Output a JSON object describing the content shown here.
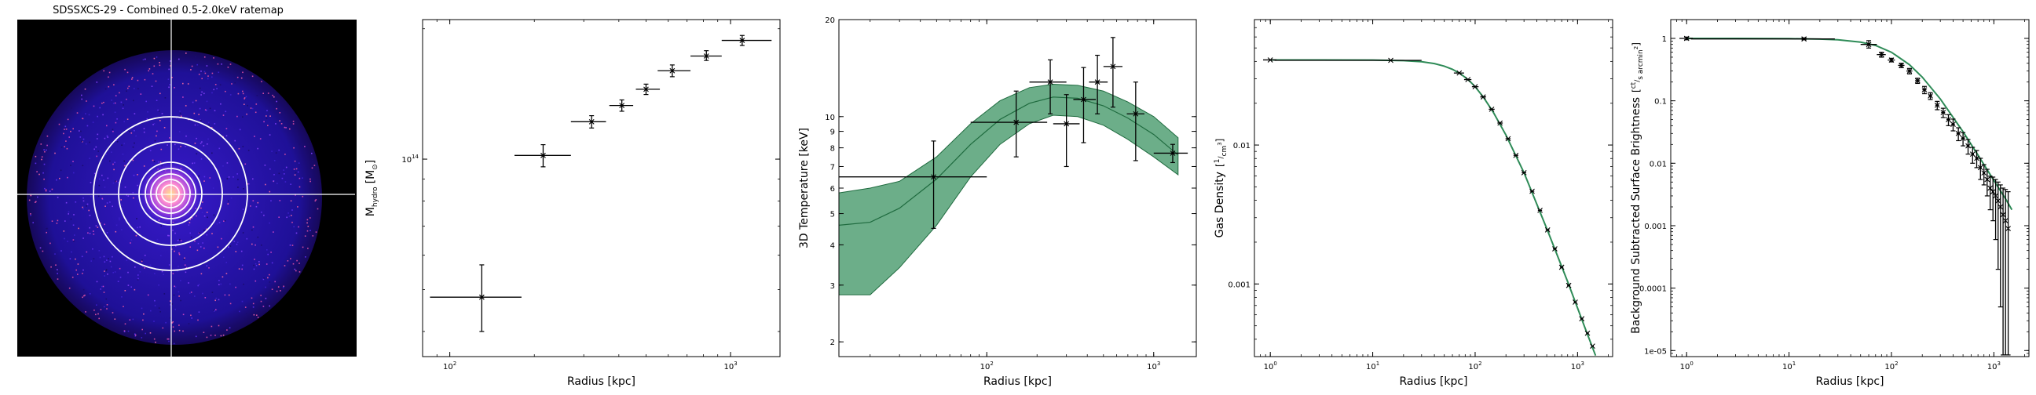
{
  "chart_data": [
    {
      "type": "image",
      "title": "SDSSXCS-29 - Combined 0.5-2.0keV ratemap",
      "colors": {
        "background": "#000000",
        "emission": "#3b1bd6",
        "core": "#ffd36b",
        "contours": "#ffffff"
      }
    },
    {
      "type": "scatter",
      "xscale": "log",
      "yscale": "log",
      "xlabel": "Radius [kpc]",
      "ylabel": "M",
      "ylabel_sub": "hydro",
      "ylabel_unit": "[M",
      "ylabel_unit_sub": "⊙",
      "xlim": [
        80,
        1500
      ],
      "ylim": [
        35000000000000,
        210000000000000
      ],
      "xticks": [
        {
          "v": 100,
          "base": "10",
          "exp": "2"
        },
        {
          "v": 1000,
          "base": "10",
          "exp": "3"
        }
      ],
      "yticks": [
        {
          "v": 100000000000000,
          "base": "10",
          "exp": "14"
        }
      ],
      "points": [
        {
          "x": 130,
          "y": 48000000000000,
          "xlo": 85,
          "xhi": 180,
          "ylo": 40000000000000,
          "yhi": 57000000000000
        },
        {
          "x": 215,
          "y": 102000000000000,
          "xlo": 170,
          "xhi": 270,
          "ylo": 96000000000000,
          "yhi": 108000000000000
        },
        {
          "x": 320,
          "y": 122000000000000,
          "xlo": 270,
          "xhi": 360,
          "ylo": 118000000000000,
          "yhi": 126000000000000
        },
        {
          "x": 410,
          "y": 133000000000000,
          "xlo": 370,
          "xhi": 450,
          "ylo": 129000000000000,
          "yhi": 137000000000000
        },
        {
          "x": 500,
          "y": 145000000000000,
          "xlo": 460,
          "xhi": 560,
          "ylo": 141000000000000,
          "yhi": 149000000000000
        },
        {
          "x": 620,
          "y": 160000000000000,
          "xlo": 550,
          "xhi": 720,
          "ylo": 155000000000000,
          "yhi": 165000000000000
        },
        {
          "x": 820,
          "y": 173000000000000,
          "xlo": 720,
          "xhi": 930,
          "ylo": 169000000000000,
          "yhi": 178000000000000
        },
        {
          "x": 1100,
          "y": 188000000000000,
          "xlo": 930,
          "xhi": 1400,
          "ylo": 183000000000000,
          "yhi": 193000000000000
        }
      ]
    },
    {
      "type": "scatter",
      "xscale": "log",
      "yscale": "log",
      "xlabel": "Radius [kpc]",
      "ylabel": "3D Temperature [keV]",
      "xlim": [
        13,
        1800
      ],
      "ylim": [
        1.8,
        20
      ],
      "xticks": [
        {
          "v": 100,
          "base": "10",
          "exp": "2"
        },
        {
          "v": 1000,
          "base": "10",
          "exp": "3"
        }
      ],
      "yticks": [
        {
          "v": 2,
          "label": "2"
        },
        {
          "v": 3,
          "label": "3"
        },
        {
          "v": 4,
          "label": "4"
        },
        {
          "v": 5,
          "label": "5"
        },
        {
          "v": 6,
          "label": "6"
        },
        {
          "v": 7,
          "label": "7"
        },
        {
          "v": 8,
          "label": "8"
        },
        {
          "v": 9,
          "label": "9"
        },
        {
          "v": 10,
          "label": "10"
        },
        {
          "v": 20,
          "label": "20"
        }
      ],
      "band_color": "#2e8b57",
      "model": {
        "r": [
          13,
          20,
          30,
          50,
          80,
          120,
          180,
          250,
          350,
          500,
          700,
          1000,
          1400
        ],
        "mid": [
          4.6,
          4.7,
          5.2,
          6.4,
          8.2,
          9.8,
          11.0,
          11.5,
          11.4,
          10.8,
          9.9,
          8.8,
          7.6
        ],
        "lo": [
          2.8,
          2.8,
          3.4,
          4.6,
          6.5,
          8.2,
          9.5,
          10.1,
          10.0,
          9.4,
          8.5,
          7.5,
          6.6
        ],
        "hi": [
          5.8,
          6.0,
          6.3,
          7.5,
          9.5,
          11.2,
          12.3,
          12.6,
          12.5,
          12.0,
          11.1,
          10.0,
          8.6
        ]
      },
      "points": [
        {
          "x": 48,
          "y": 6.5,
          "xlo": 13,
          "xhi": 100,
          "ylo": 4.5,
          "yhi": 8.4
        },
        {
          "x": 150,
          "y": 9.6,
          "xlo": 80,
          "xhi": 230,
          "ylo": 7.5,
          "yhi": 12.0
        },
        {
          "x": 240,
          "y": 12.8,
          "xlo": 180,
          "xhi": 300,
          "ylo": 10.2,
          "yhi": 15.0
        },
        {
          "x": 300,
          "y": 9.5,
          "xlo": 250,
          "xhi": 360,
          "ylo": 7.0,
          "yhi": 11.7
        },
        {
          "x": 380,
          "y": 11.3,
          "xlo": 330,
          "xhi": 450,
          "ylo": 8.3,
          "yhi": 14.2
        },
        {
          "x": 460,
          "y": 12.8,
          "xlo": 410,
          "xhi": 530,
          "ylo": 10.2,
          "yhi": 15.5
        },
        {
          "x": 570,
          "y": 14.3,
          "xlo": 500,
          "xhi": 650,
          "ylo": 10.7,
          "yhi": 17.6
        },
        {
          "x": 780,
          "y": 10.2,
          "xlo": 690,
          "xhi": 880,
          "ylo": 7.3,
          "yhi": 12.8
        },
        {
          "x": 1300,
          "y": 7.7,
          "xlo": 1000,
          "xhi": 1600,
          "ylo": 7.2,
          "yhi": 8.2
        }
      ]
    },
    {
      "type": "line",
      "xscale": "log",
      "yscale": "log",
      "xlabel": "Radius [kpc]",
      "ylabel": "Gas Density",
      "ylabel_unit_num": "1",
      "ylabel_unit_den": "cm",
      "ylabel_unit_den_exp": "3",
      "xlim": [
        0.7,
        2200
      ],
      "ylim": [
        0.0003,
        0.08
      ],
      "xticks": [
        {
          "v": 1,
          "base": "10",
          "exp": "0"
        },
        {
          "v": 10,
          "base": "10",
          "exp": "1"
        },
        {
          "v": 100,
          "base": "10",
          "exp": "2"
        },
        {
          "v": 1000,
          "base": "10",
          "exp": "3"
        }
      ],
      "yticks": [
        {
          "v": 0.01,
          "label": "0.01"
        },
        {
          "v": 0.001,
          "label": "0.001"
        }
      ],
      "model_color": "#2e8b57",
      "model": {
        "r": [
          1,
          3,
          10,
          20,
          30,
          40,
          50,
          60,
          70,
          80,
          90,
          100,
          120,
          150,
          200,
          300,
          500,
          800,
          1200,
          1500
        ],
        "val": [
          0.041,
          0.041,
          0.0409,
          0.0405,
          0.0398,
          0.0386,
          0.037,
          0.0351,
          0.033,
          0.0307,
          0.0285,
          0.0263,
          0.0222,
          0.0173,
          0.0118,
          0.00632,
          0.00251,
          0.00104,
          0.000469,
          0.000305
        ]
      },
      "points": [
        {
          "x": 1,
          "y": 0.041,
          "xlo": 0.85,
          "xhi": 1.15
        },
        {
          "x": 15,
          "y": 0.0407,
          "xlo": 1.1,
          "xhi": 30
        },
        {
          "x": 70,
          "y": 0.033,
          "xlo": 62,
          "xhi": 78
        },
        {
          "x": 85,
          "y": 0.0296,
          "xlo": 78,
          "xhi": 92
        },
        {
          "x": 100,
          "y": 0.0263,
          "xlo": 93,
          "xhi": 108
        },
        {
          "x": 120,
          "y": 0.0222,
          "xlo": 112,
          "xhi": 128
        },
        {
          "x": 145,
          "y": 0.0181,
          "xlo": 136,
          "xhi": 155
        },
        {
          "x": 175,
          "y": 0.0144,
          "xlo": 165,
          "xhi": 186
        },
        {
          "x": 210,
          "y": 0.0111,
          "xlo": 198,
          "xhi": 222
        },
        {
          "x": 250,
          "y": 0.00843,
          "xlo": 237,
          "xhi": 264
        },
        {
          "x": 300,
          "y": 0.00632,
          "xlo": 285,
          "xhi": 315
        },
        {
          "x": 360,
          "y": 0.00465,
          "xlo": 343,
          "xhi": 378
        },
        {
          "x": 430,
          "y": 0.00339,
          "xlo": 410,
          "xhi": 450
        },
        {
          "x": 510,
          "y": 0.00245,
          "xlo": 488,
          "xhi": 532
        },
        {
          "x": 600,
          "y": 0.00179,
          "xlo": 575,
          "xhi": 625
        },
        {
          "x": 700,
          "y": 0.00132,
          "xlo": 673,
          "xhi": 728
        },
        {
          "x": 820,
          "y": 0.000976,
          "xlo": 790,
          "xhi": 850
        },
        {
          "x": 950,
          "y": 0.00074,
          "xlo": 917,
          "xhi": 983
        },
        {
          "x": 1100,
          "y": 0.000562,
          "xlo": 1065,
          "xhi": 1135
        },
        {
          "x": 1250,
          "y": 0.000442,
          "xlo": 1210,
          "xhi": 1290
        },
        {
          "x": 1400,
          "y": 0.000357,
          "xlo": 1360,
          "xhi": 1440
        }
      ]
    },
    {
      "type": "scatter",
      "xscale": "log",
      "yscale": "log",
      "xlabel": "Radius [kpc]",
      "ylabel": "Background Subtracted Surface Brightness",
      "ylabel_unit_num": "ct",
      "ylabel_unit_den": "s arcmin",
      "ylabel_unit_den_exp": "2",
      "xlim": [
        0.7,
        2200
      ],
      "ylim": [
        8e-06,
        2
      ],
      "xticks": [
        {
          "v": 1,
          "base": "10",
          "exp": "0"
        },
        {
          "v": 10,
          "base": "10",
          "exp": "1"
        },
        {
          "v": 100,
          "base": "10",
          "exp": "2"
        },
        {
          "v": 1000,
          "base": "10",
          "exp": "3"
        }
      ],
      "yticks": [
        {
          "v": 1,
          "label": "1"
        },
        {
          "v": 0.1,
          "label": "0.1"
        },
        {
          "v": 0.01,
          "label": "0.01"
        },
        {
          "v": 0.001,
          "label": "0.001"
        },
        {
          "v": 0.0001,
          "label": "0.0001"
        },
        {
          "v": 1e-05,
          "label": "1e-05"
        }
      ],
      "model_color": "#2e8b57",
      "model": {
        "r": [
          1,
          3,
          10,
          20,
          30,
          50,
          70,
          100,
          150,
          200,
          300,
          500,
          700,
          1000,
          1300,
          1500
        ],
        "val": [
          1.0,
          1.0,
          0.99,
          0.975,
          0.95,
          0.87,
          0.77,
          0.6,
          0.38,
          0.24,
          0.107,
          0.032,
          0.0135,
          0.0053,
          0.0027,
          0.0018
        ]
      },
      "points": [
        {
          "x": 1,
          "y": 1.0,
          "xlo": 0.85,
          "xhi": 1.15,
          "ylo": 0.95,
          "yhi": 1.05
        },
        {
          "x": 14,
          "y": 0.98,
          "xlo": 1.1,
          "xhi": 28,
          "ylo": 0.95,
          "yhi": 1.02
        },
        {
          "x": 60,
          "y": 0.8,
          "xlo": 50,
          "xhi": 72,
          "ylo": 0.7,
          "yhi": 0.92
        },
        {
          "x": 80,
          "y": 0.55,
          "xlo": 72,
          "xhi": 88,
          "ylo": 0.5,
          "yhi": 0.6
        },
        {
          "x": 100,
          "y": 0.45,
          "xlo": 92,
          "xhi": 108,
          "ylo": 0.42,
          "yhi": 0.48
        },
        {
          "x": 125,
          "y": 0.37,
          "xlo": 116,
          "xhi": 134,
          "ylo": 0.34,
          "yhi": 0.4
        },
        {
          "x": 150,
          "y": 0.3,
          "xlo": 140,
          "xhi": 160,
          "ylo": 0.27,
          "yhi": 0.33
        },
        {
          "x": 180,
          "y": 0.21,
          "xlo": 170,
          "xhi": 190,
          "ylo": 0.19,
          "yhi": 0.23
        },
        {
          "x": 210,
          "y": 0.15,
          "xlo": 200,
          "xhi": 220,
          "ylo": 0.13,
          "yhi": 0.17
        },
        {
          "x": 240,
          "y": 0.12,
          "xlo": 230,
          "xhi": 250,
          "ylo": 0.105,
          "yhi": 0.135
        },
        {
          "x": 280,
          "y": 0.085,
          "xlo": 268,
          "xhi": 292,
          "ylo": 0.072,
          "yhi": 0.098
        },
        {
          "x": 320,
          "y": 0.065,
          "xlo": 306,
          "xhi": 334,
          "ylo": 0.054,
          "yhi": 0.076
        },
        {
          "x": 360,
          "y": 0.05,
          "xlo": 345,
          "xhi": 375,
          "ylo": 0.04,
          "yhi": 0.06
        },
        {
          "x": 400,
          "y": 0.042,
          "xlo": 384,
          "xhi": 416,
          "ylo": 0.033,
          "yhi": 0.051
        },
        {
          "x": 450,
          "y": 0.03,
          "xlo": 432,
          "xhi": 468,
          "ylo": 0.023,
          "yhi": 0.037
        },
        {
          "x": 500,
          "y": 0.025,
          "xlo": 480,
          "xhi": 520,
          "ylo": 0.019,
          "yhi": 0.031
        },
        {
          "x": 560,
          "y": 0.019,
          "xlo": 540,
          "xhi": 580,
          "ylo": 0.014,
          "yhi": 0.024
        },
        {
          "x": 620,
          "y": 0.014,
          "xlo": 600,
          "xhi": 640,
          "ylo": 0.01,
          "yhi": 0.018
        },
        {
          "x": 680,
          "y": 0.012,
          "xlo": 660,
          "xhi": 700,
          "ylo": 0.0085,
          "yhi": 0.016
        },
        {
          "x": 740,
          "y": 0.0085,
          "xlo": 720,
          "xhi": 760,
          "ylo": 0.0055,
          "yhi": 0.012
        },
        {
          "x": 800,
          "y": 0.007,
          "xlo": 780,
          "xhi": 820,
          "ylo": 0.0045,
          "yhi": 0.0095
        },
        {
          "x": 860,
          "y": 0.0055,
          "xlo": 840,
          "xhi": 880,
          "ylo": 0.003,
          "yhi": 0.008
        },
        {
          "x": 920,
          "y": 0.004,
          "xlo": 900,
          "xhi": 940,
          "ylo": 0.0018,
          "yhi": 0.0062
        },
        {
          "x": 980,
          "y": 0.0035,
          "xlo": 960,
          "xhi": 1000,
          "ylo": 0.0012,
          "yhi": 0.006
        },
        {
          "x": 1040,
          "y": 0.003,
          "xlo": 1020,
          "xhi": 1060,
          "ylo": 0.0006,
          "yhi": 0.0055
        },
        {
          "x": 1100,
          "y": 0.0025,
          "xlo": 1080,
          "xhi": 1120,
          "ylo": 0.0002,
          "yhi": 0.005
        },
        {
          "x": 1160,
          "y": 0.002,
          "xlo": 1140,
          "xhi": 1180,
          "ylo": 5e-05,
          "yhi": 0.0045
        },
        {
          "x": 1230,
          "y": 0.0015,
          "xlo": 1210,
          "xhi": 1250,
          "ylo": 8.5e-06,
          "yhi": 0.004
        },
        {
          "x": 1300,
          "y": 0.0012,
          "xlo": 1280,
          "xhi": 1320,
          "ylo": 8.5e-06,
          "yhi": 0.0038
        },
        {
          "x": 1380,
          "y": 0.0009,
          "xlo": 1360,
          "xhi": 1400,
          "ylo": 8.5e-06,
          "yhi": 0.0035
        }
      ]
    }
  ]
}
